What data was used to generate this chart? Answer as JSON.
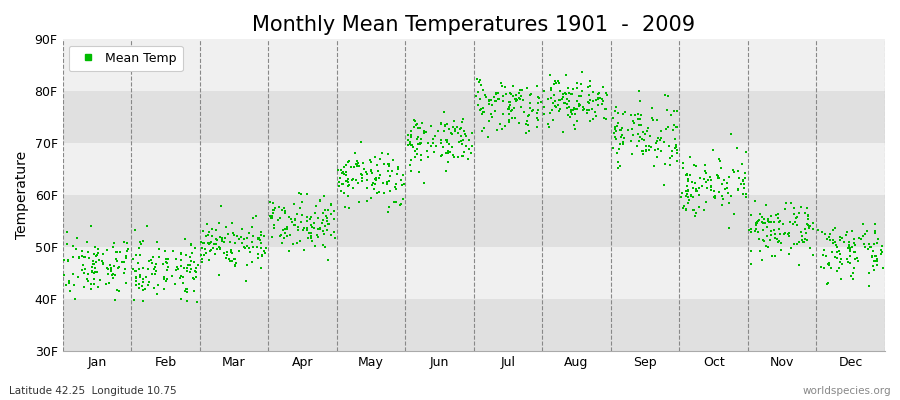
{
  "title": "Monthly Mean Temperatures 1901  -  2009",
  "ylabel": "Temperature",
  "xlabel_months": [
    "Jan",
    "Feb",
    "Mar",
    "Apr",
    "May",
    "Jun",
    "Jul",
    "Aug",
    "Sep",
    "Oct",
    "Nov",
    "Dec"
  ],
  "yticks": [
    30,
    40,
    50,
    60,
    70,
    80,
    90
  ],
  "ytick_labels": [
    "30F",
    "40F",
    "50F",
    "60F",
    "70F",
    "80F",
    "90F"
  ],
  "ylim": [
    30,
    90
  ],
  "dot_color": "#00bb00",
  "legend_label": "Mean Temp",
  "bottom_left": "Latitude 42.25  Longitude 10.75",
  "bottom_right": "worldspecies.org",
  "plot_bg": "#ebebeb",
  "band_colors": [
    "#e0e0e0",
    "#f0f0f0"
  ],
  "fig_bg": "#ffffff",
  "title_fontsize": 15,
  "axis_fontsize": 9,
  "label_fontsize": 10,
  "monthly_mean_temps_F": [
    46.5,
    46.0,
    50.5,
    55.0,
    63.0,
    70.5,
    77.5,
    78.0,
    71.5,
    62.0,
    53.0,
    49.0
  ],
  "monthly_std_F": [
    2.8,
    2.8,
    2.5,
    2.5,
    2.8,
    2.5,
    2.5,
    2.5,
    3.0,
    2.8,
    2.5,
    2.5
  ],
  "n_years": 109,
  "seed": 7,
  "dot_size": 4
}
